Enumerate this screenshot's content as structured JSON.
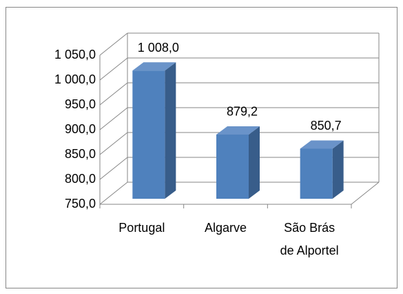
{
  "chart_data": {
    "type": "bar3d",
    "categories": [
      "Portugal",
      "Algarve",
      "São Brás de Alportel"
    ],
    "values": [
      1008,
      879.2,
      850.7
    ],
    "value_labels": [
      "1 008,0",
      "879,2",
      "850,7"
    ],
    "color": "#4f81bd",
    "ylim": [
      750,
      1050
    ],
    "yticks": [
      {
        "value": 750,
        "label": "750,0"
      },
      {
        "value": 800,
        "label": "800,0"
      },
      {
        "value": 850,
        "label": "850,0"
      },
      {
        "value": 900,
        "label": "900,0"
      },
      {
        "value": 950,
        "label": "950,0"
      },
      {
        "value": 1000,
        "label": "1 000,0"
      },
      {
        "value": 1050,
        "label": "1 050,0"
      }
    ],
    "grid": true
  }
}
